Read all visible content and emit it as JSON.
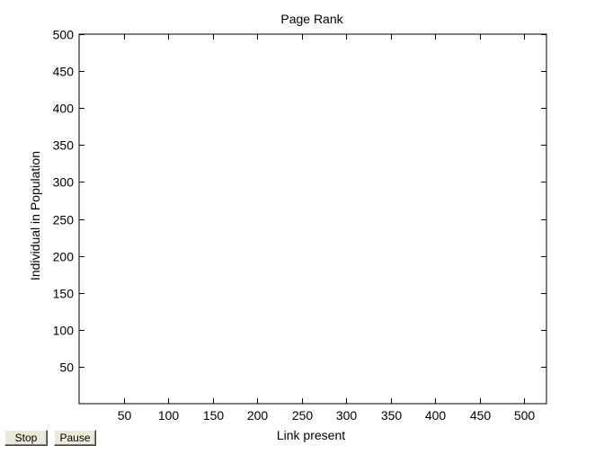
{
  "chart_data": {
    "type": "scatter",
    "title": "Page Rank",
    "xlabel": "Link present",
    "ylabel": "Individual in Population",
    "xlim": [
      0,
      525
    ],
    "ylim": [
      0,
      500
    ],
    "xticks": [
      50,
      100,
      150,
      200,
      250,
      300,
      350,
      400,
      450,
      500
    ],
    "yticks": [
      50,
      100,
      150,
      200,
      250,
      300,
      350,
      400,
      450,
      500
    ],
    "x": [],
    "y": [],
    "grid": false,
    "y_direction": "reversed"
  },
  "controls": {
    "stop_label": "Stop",
    "pause_label": "Pause"
  }
}
